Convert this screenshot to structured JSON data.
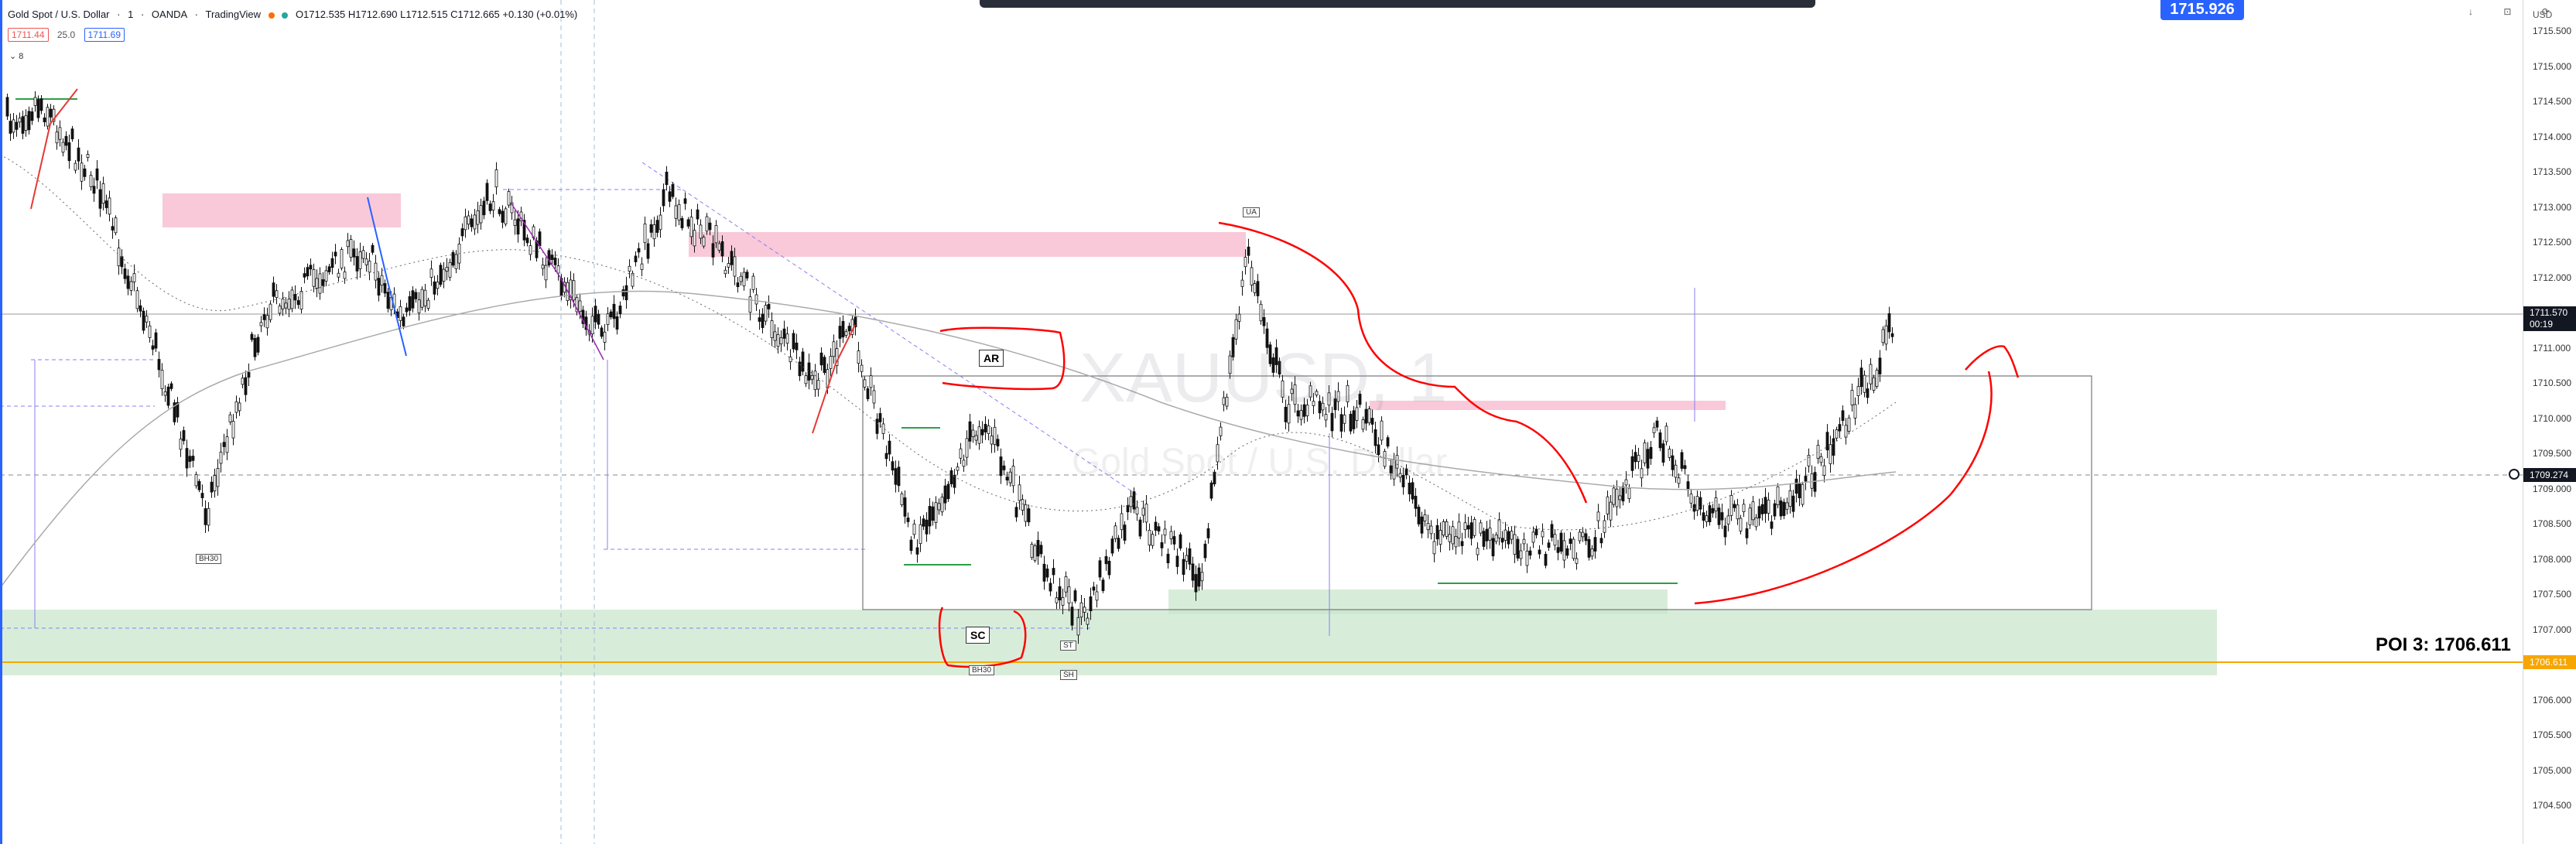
{
  "symbol": {
    "title": "Gold Spot / U.S. Dollar",
    "interval": "1",
    "broker": "OANDA",
    "platform": "TradingView",
    "ohlc": "O1712.535 H1712.690 L1712.515 C1712.665 +0.130 (+0.01%)"
  },
  "quote": {
    "bid": "1711.44",
    "spread": "25.0",
    "ask": "1711.69"
  },
  "indicator_toggle": "8",
  "top_badge": "1715.926",
  "window_controls": "↓ ⊡ ⟳",
  "currency": "USD",
  "watermark": {
    "ticker": "XAUUSD, 1",
    "name": "Gold Spot / U.S. Dollar"
  },
  "price_axis": {
    "ticks": [
      "1715.500",
      "1715.000",
      "1714.500",
      "1714.000",
      "1713.500",
      "1713.000",
      "1712.500",
      "1712.000",
      "1711.500",
      "1711.000",
      "1710.500",
      "1710.000",
      "1709.500",
      "1709.000",
      "1708.500",
      "1708.000",
      "1707.500",
      "1707.000",
      "1706.500",
      "1706.000",
      "1705.500",
      "1705.000",
      "1704.500"
    ],
    "current_price": "1711.570",
    "countdown": "00:19",
    "crosshair_price": "1709.274",
    "poi_price": "1706.611"
  },
  "annotations": {
    "poi": "POI 3: 1706.611",
    "ar": "AR",
    "sc": "SC",
    "st": "ST",
    "ua": "UA",
    "bh30_1": "BH30",
    "bh30_2": "BH30",
    "sh": "SH"
  },
  "colors": {
    "accent": "#2962ff",
    "poi_line": "#f7a600",
    "demand_zone": "#c8e6c9",
    "supply_zone": "#f8bbd0",
    "drawing_red": "#ff0000"
  }
}
